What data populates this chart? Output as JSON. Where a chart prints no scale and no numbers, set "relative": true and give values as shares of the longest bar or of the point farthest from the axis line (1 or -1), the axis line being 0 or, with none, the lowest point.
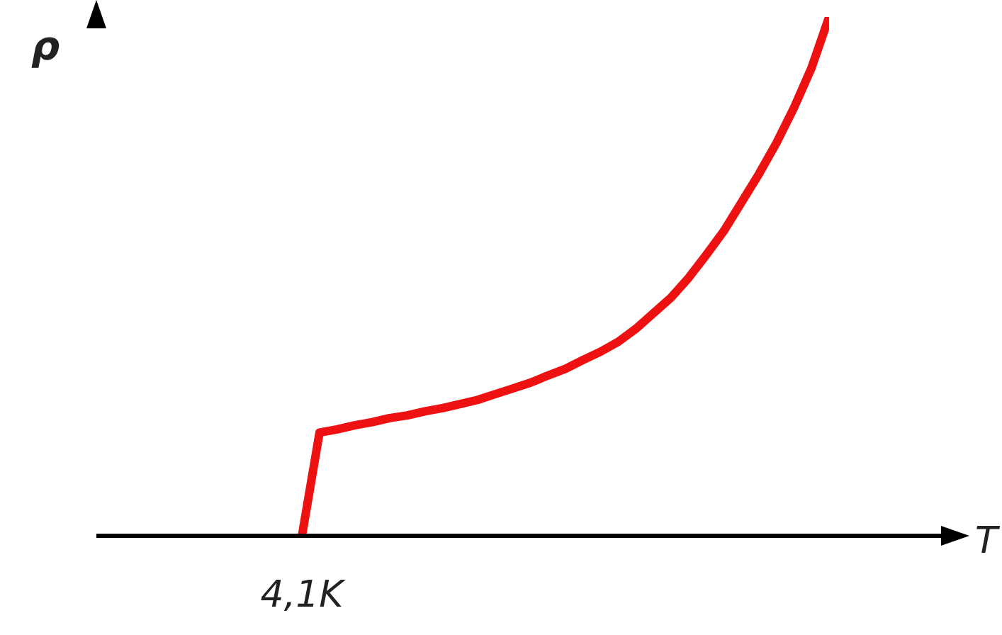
{
  "chart_data": {
    "type": "line",
    "relative": true,
    "xlabel": "T",
    "annotations": [
      "4,1K",
      "ρ"
    ],
    "categories": [
      null,
      null,
      null,
      null,
      null,
      null,
      null,
      null,
      null,
      null,
      null,
      null,
      null,
      null,
      null,
      null,
      null,
      null,
      null,
      null,
      null,
      null,
      null,
      null,
      null,
      null,
      null,
      null,
      null,
      null,
      null
    ],
    "series": [
      {
        "color": "#ee1111",
        "values": [
          0,
          0.199,
          0.205,
          0.213,
          0.219,
          0.227,
          0.232,
          0.24,
          0.246,
          0.254,
          0.262,
          0.273,
          0.284,
          0.295,
          0.309,
          0.322,
          0.339,
          0.355,
          0.374,
          0.399,
          0.429,
          0.459,
          0.497,
          0.541,
          0.587,
          0.642,
          0.697,
          0.757,
          0.825,
          0.902,
          1
        ]
      }
    ],
    "grid": false,
    "legend": false,
    "line_style": "solid"
  }
}
